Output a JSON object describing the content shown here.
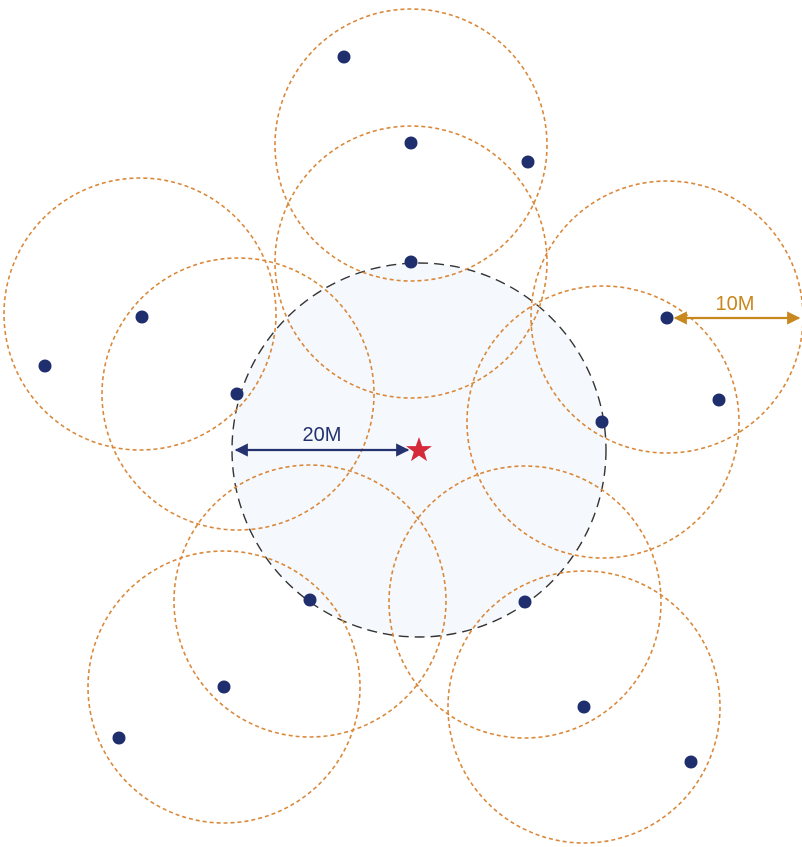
{
  "labels": {
    "center_radius": "20M",
    "node_radius": "10M"
  },
  "colors": {
    "center_fill": "#f5f8fc",
    "center_stroke": "#333333",
    "node_ring": "#d9883a",
    "node_dot": "#1f2f6e",
    "star": "#d42a3a",
    "arrow_20m": "#24336f",
    "arrow_10m": "#c8881e",
    "label_20m": "#24336f",
    "label_10m": "#c8881e"
  },
  "icons": {
    "center_marker": "star-icon",
    "node_marker": "dot-icon"
  }
}
